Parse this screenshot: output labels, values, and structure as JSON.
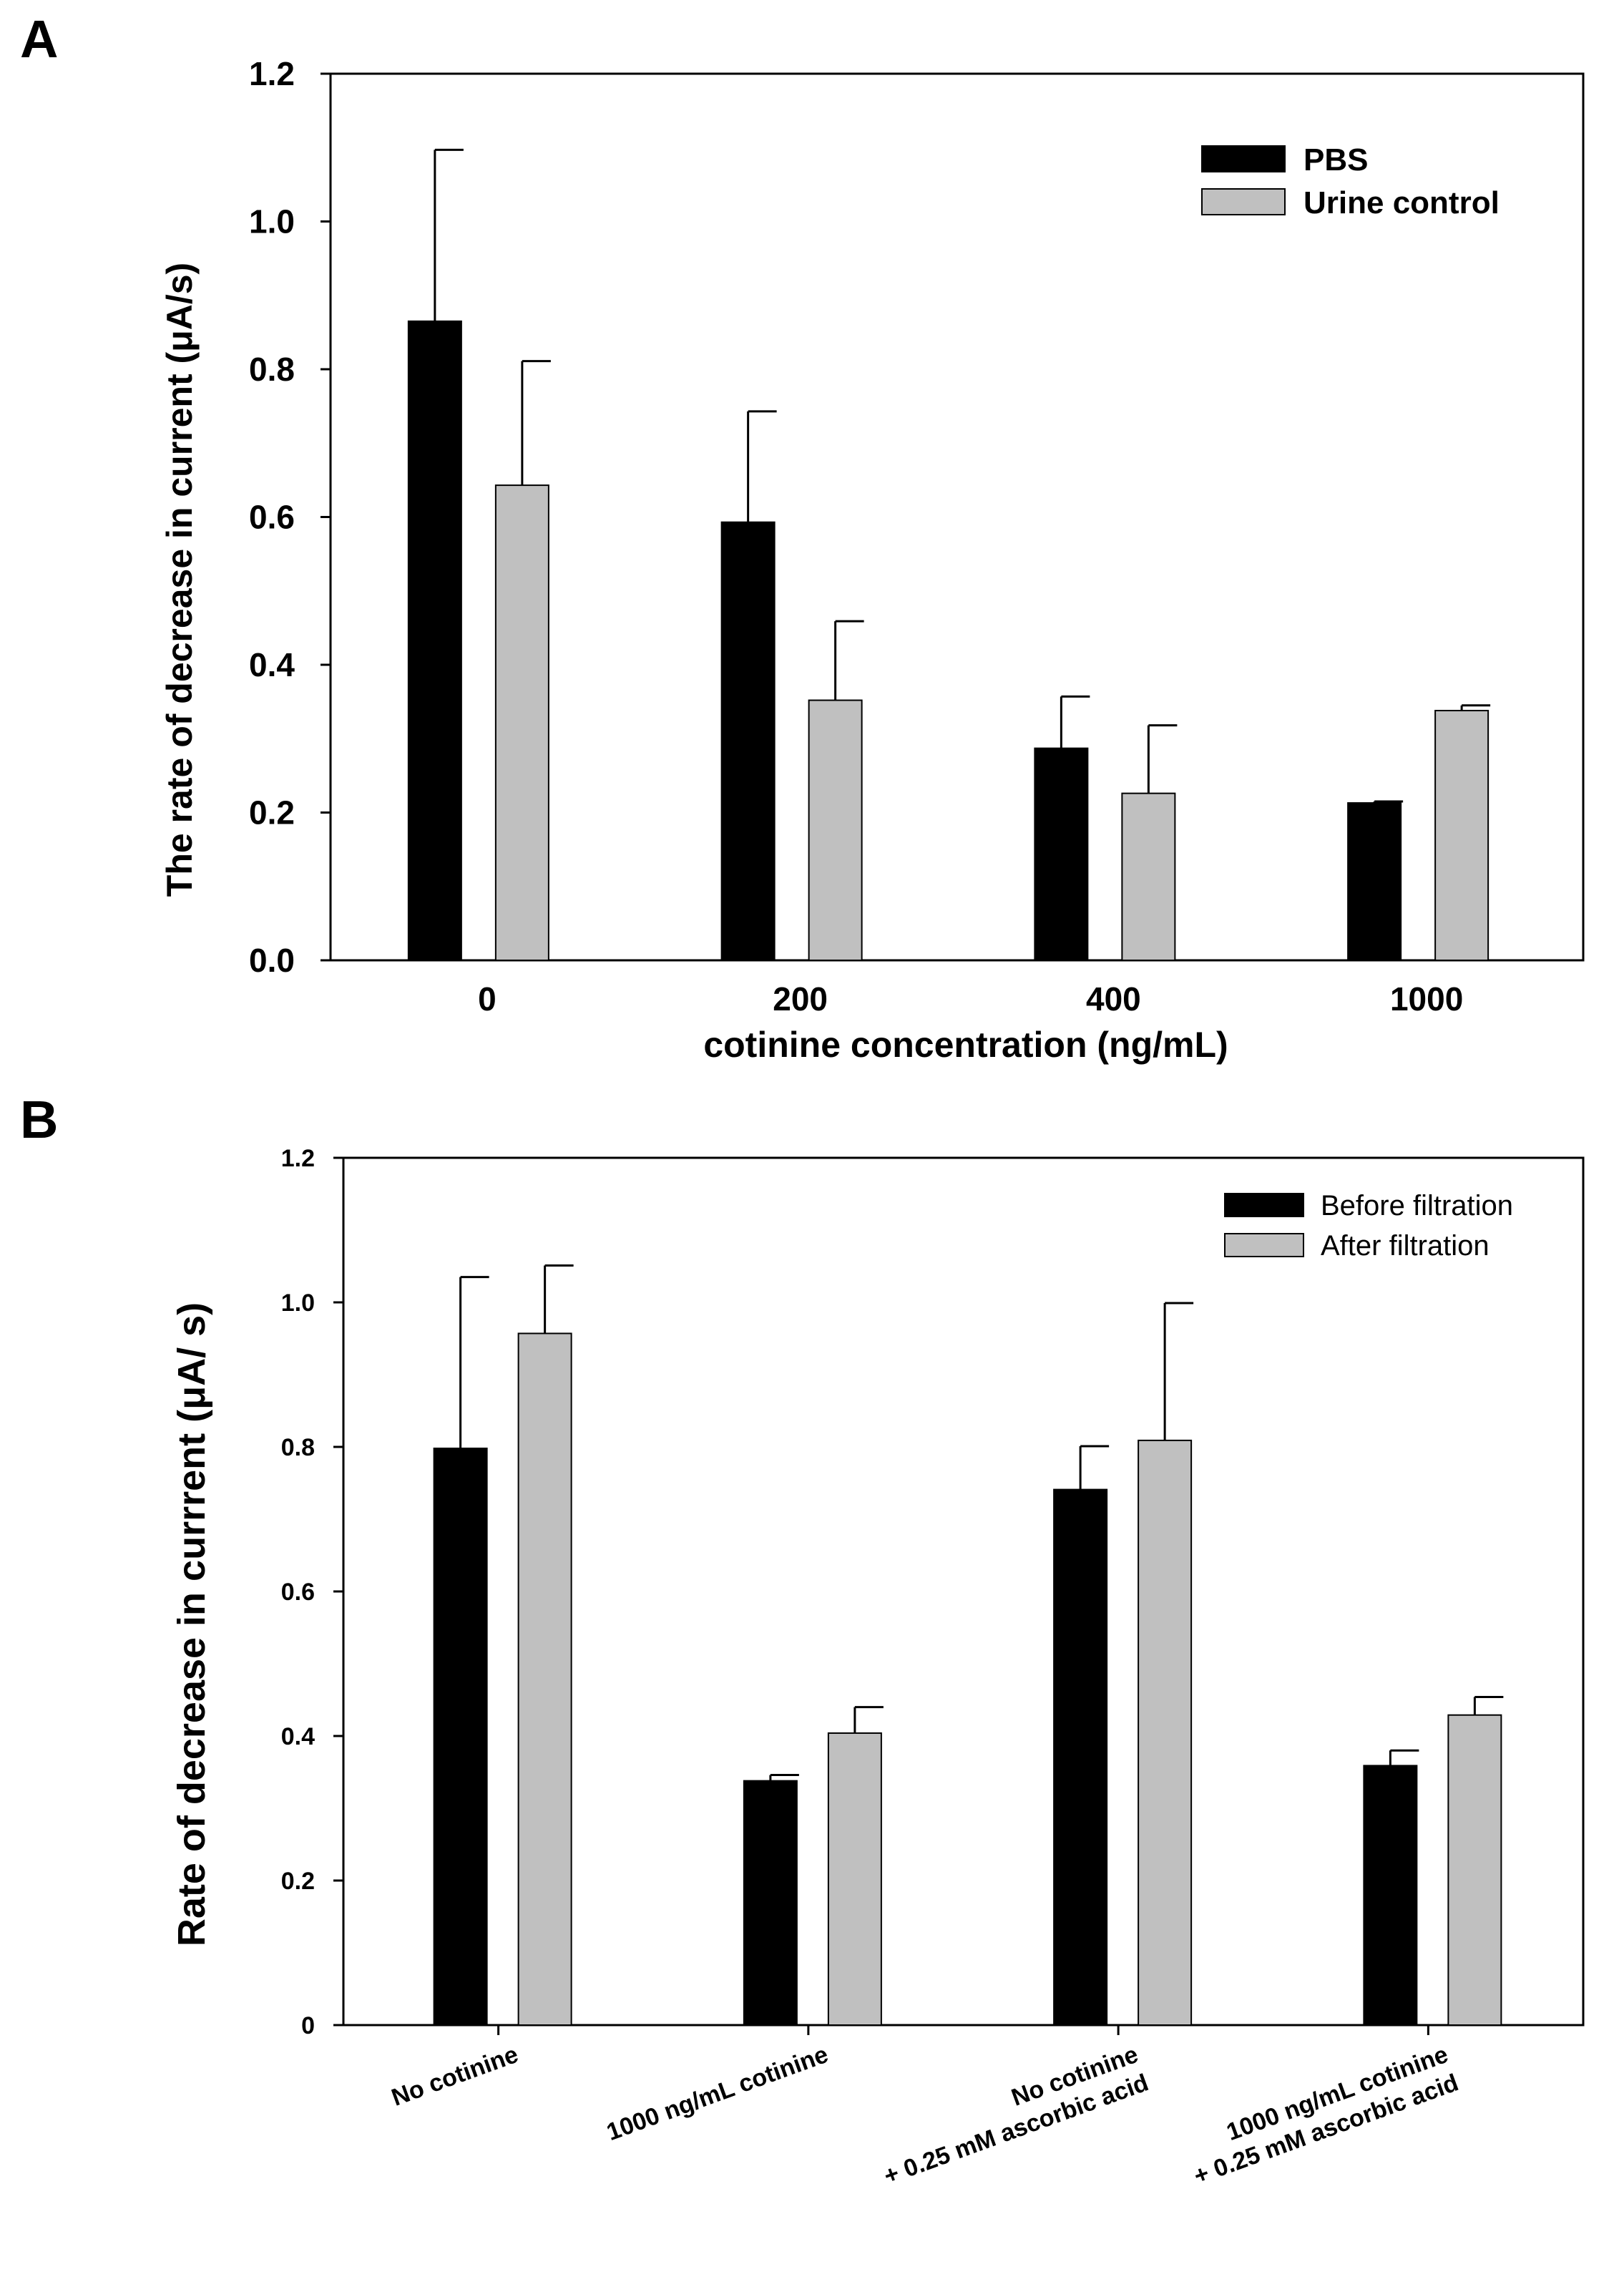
{
  "chart_data": [
    {
      "panel": "A",
      "type": "bar",
      "title": "",
      "xlabel": "cotinine concentration (ng/mL)",
      "ylabel": "The rate of decrease in current (μA/s)",
      "categories": [
        "0",
        "200",
        "400",
        "1000"
      ],
      "ylim": [
        0,
        1.2
      ],
      "yticks": [
        "0.0",
        "0.2",
        "0.4",
        "0.6",
        "0.8",
        "1.0",
        "1.2"
      ],
      "legend_position": "top-right",
      "grid": false,
      "series": [
        {
          "name": "PBS",
          "color": "#000000",
          "values": [
            0.865,
            0.593,
            0.287,
            0.213
          ],
          "errors": [
            0.232,
            0.15,
            0.07,
            0.002
          ]
        },
        {
          "name": "Urine control",
          "color": "#c0c0c0",
          "values": [
            0.643,
            0.352,
            0.226,
            0.338
          ],
          "errors": [
            0.168,
            0.107,
            0.092,
            0.007
          ]
        }
      ]
    },
    {
      "panel": "B",
      "type": "bar",
      "title": "",
      "xlabel": "",
      "ylabel": "Rate of decrease in currrent (μA/ s)",
      "categories": [
        [
          "No cotinine"
        ],
        [
          "1000 ng/mL cotinine"
        ],
        [
          "No cotinine",
          "+ 0.25 mM ascorbic acid"
        ],
        [
          "1000 ng/mL cotinine",
          "+ 0.25 mM ascorbic acid"
        ]
      ],
      "ylim": [
        0,
        1.2
      ],
      "yticks": [
        "0",
        "0.2",
        "0.4",
        "0.6",
        "0.8",
        "1.0",
        "1.2"
      ],
      "legend_position": "top-right",
      "grid": false,
      "series": [
        {
          "name": "Before filtration",
          "color": "#000000",
          "values": [
            0.798,
            0.338,
            0.741,
            0.359
          ],
          "errors": [
            0.237,
            0.008,
            0.06,
            0.021
          ]
        },
        {
          "name": "After filtration",
          "color": "#c0c0c0",
          "values": [
            0.957,
            0.404,
            0.809,
            0.429
          ],
          "errors": [
            0.094,
            0.036,
            0.19,
            0.025
          ]
        }
      ]
    }
  ]
}
